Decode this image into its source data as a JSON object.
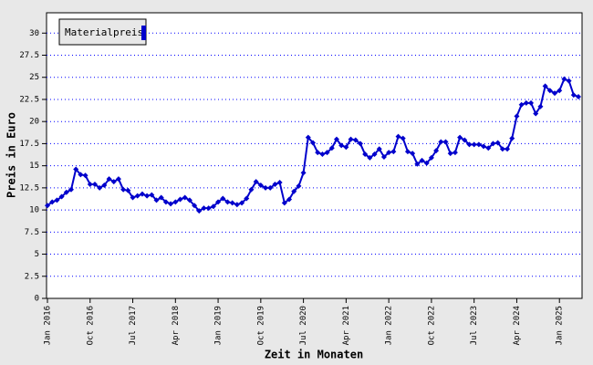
{
  "chart_data": {
    "type": "line",
    "x_label": "Zeit in Monaten",
    "y_label": "Preis in Euro",
    "categories": [
      "Jan 2016",
      null,
      null,
      null,
      null,
      null,
      null,
      null,
      null,
      "Oct 2016",
      null,
      null,
      null,
      null,
      null,
      null,
      null,
      null,
      "Jul 2017",
      null,
      null,
      null,
      null,
      null,
      null,
      null,
      null,
      "Apr 2018",
      null,
      null,
      null,
      null,
      null,
      null,
      null,
      null,
      "Jan 2019",
      null,
      null,
      null,
      null,
      null,
      null,
      null,
      null,
      "Oct 2019",
      null,
      null,
      null,
      null,
      null,
      null,
      null,
      null,
      "Jul 2020",
      null,
      null,
      null,
      null,
      null,
      null,
      null,
      null,
      "Apr 2021",
      null,
      null,
      null,
      null,
      null,
      null,
      null,
      null,
      "Jan 2022",
      null,
      null,
      null,
      null,
      null,
      null,
      null,
      null,
      "Oct 2022",
      null,
      null,
      null,
      null,
      null,
      null,
      null,
      null,
      "Jul 2023",
      null,
      null,
      null,
      null,
      null,
      null,
      null,
      null,
      "Apr 2024",
      null,
      null,
      null,
      null,
      null,
      null,
      null,
      null,
      "Jan 2025",
      null,
      null,
      null,
      null
    ],
    "series": [
      {
        "name": "Materialpreis",
        "color": "#0000cc",
        "values": [
          10.5,
          10.9,
          11.1,
          11.5,
          12.0,
          12.3,
          14.6,
          14.0,
          13.9,
          12.9,
          12.9,
          12.5,
          12.8,
          13.5,
          13.2,
          13.5,
          12.3,
          12.2,
          11.4,
          11.6,
          11.8,
          11.6,
          11.7,
          11.1,
          11.4,
          10.9,
          10.7,
          10.9,
          11.2,
          11.4,
          11.1,
          10.5,
          9.9,
          10.2,
          10.2,
          10.4,
          10.9,
          11.3,
          10.9,
          10.8,
          10.6,
          10.8,
          11.3,
          12.3,
          13.2,
          12.8,
          12.5,
          12.5,
          12.9,
          13.1,
          10.8,
          11.2,
          12.1,
          12.7,
          14.2,
          18.2,
          17.6,
          16.5,
          16.3,
          16.5,
          17.0,
          18.0,
          17.3,
          17.1,
          18.0,
          17.9,
          17.5,
          16.3,
          15.9,
          16.3,
          16.9,
          16.0,
          16.5,
          16.6,
          18.3,
          18.1,
          16.6,
          16.4,
          15.2,
          15.6,
          15.3,
          15.9,
          16.7,
          17.7,
          17.7,
          16.4,
          16.5,
          18.2,
          17.9,
          17.4,
          17.4,
          17.4,
          17.2,
          17.0,
          17.5,
          17.6,
          16.9,
          16.9,
          18.1,
          20.6,
          21.9,
          22.1,
          22.1,
          20.9,
          21.7,
          24.0,
          23.5,
          23.2,
          23.5,
          24.8,
          24.6,
          23.0,
          22.8
        ]
      }
    ],
    "ylim": [
      0,
      32.3
    ],
    "yticks": [
      0,
      2.5,
      5,
      7.5,
      10,
      12.5,
      15,
      17.5,
      20,
      22.5,
      25,
      27.5,
      30
    ],
    "grid": true,
    "legend": "top-left"
  }
}
